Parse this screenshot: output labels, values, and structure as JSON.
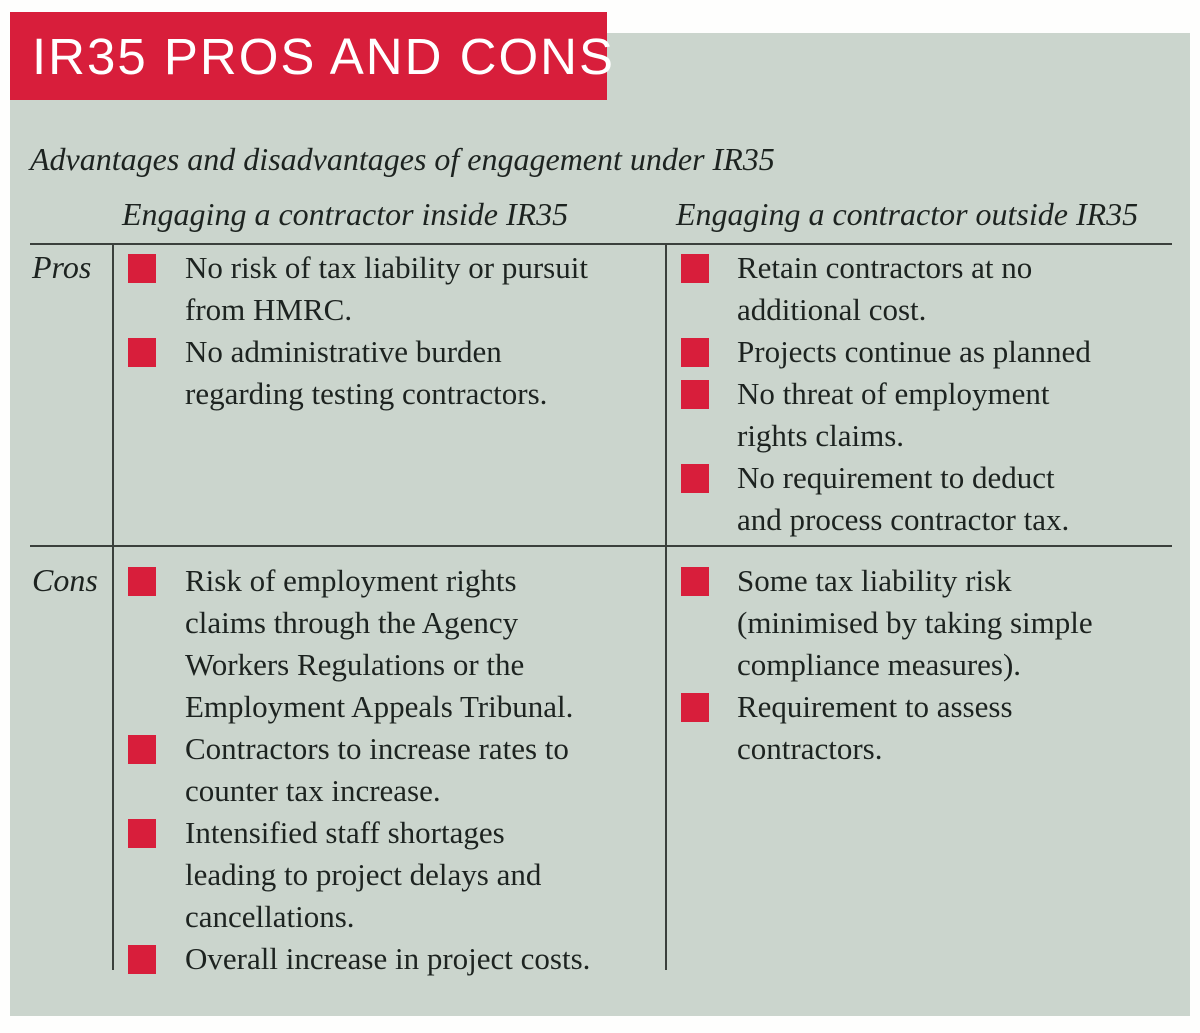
{
  "banner": {
    "title": "IR35 PROS AND CONS"
  },
  "subtitle": "Advantages and disadvantages of engagement under IR35",
  "columns": {
    "inside_header": "Engaging a contractor inside IR35",
    "outside_header": "Engaging a contractor outside IR35"
  },
  "rows": {
    "pros": {
      "label": "Pros",
      "inside": [
        "No risk of tax liability or pursuit\nfrom HMRC.",
        "No administrative burden\nregarding testing contractors."
      ],
      "outside": [
        "Retain contractors at no\nadditional cost.",
        "Projects continue as planned",
        "No threat of employment\nrights claims.",
        "No requirement to deduct\nand process contractor tax."
      ]
    },
    "cons": {
      "label": "Cons",
      "inside": [
        "Risk of employment rights\nclaims through the Agency\nWorkers Regulations or the\nEmployment Appeals Tribunal.",
        "Contractors to increase rates to\ncounter tax increase.",
        "Intensified staff shortages\nleading to project delays and\ncancellations.",
        "Overall increase in project costs."
      ],
      "outside": [
        "Some tax liability risk\n(minimised by taking simple\ncompliance measures).",
        "Requirement to assess\ncontractors."
      ]
    }
  },
  "colors": {
    "accent_red": "#d81e3b",
    "panel_sage": "#cbd5cd",
    "rule_dark": "#3b403c",
    "text_dark": "#1d2320",
    "title_white": "#ffffff"
  }
}
